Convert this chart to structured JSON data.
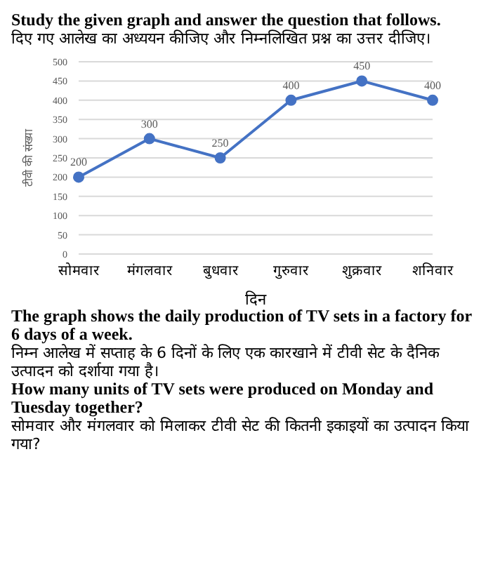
{
  "chart_data": {
    "type": "line",
    "title": "Study the given graph and answer the question that follows.",
    "subtitle": "दिए गए आलेख का अध्ययन कीजिए और निम्नलिखित प्रश्न का उत्तर दीजिए।",
    "xlabel": "दिन",
    "ylabel": "टीवी की संख्या",
    "categories": [
      "सोमवार",
      "मंगलवार",
      "बुधवार",
      "गुरुवार",
      "शुक्रवार",
      "शनिवार"
    ],
    "values": [
      200,
      300,
      250,
      400,
      450,
      400
    ],
    "color": "#4472c4",
    "marker": "circle",
    "data_labels": true,
    "grid": "y",
    "ylim": [
      0,
      500
    ],
    "yticks": [
      0,
      50,
      100,
      150,
      200,
      250,
      300,
      350,
      400,
      450,
      500
    ],
    "annotations": [
      "The graph shows the daily production of TV sets in a factory for 6 days of a week.",
      "निम्न आलेख में सप्ताह के 6 दिनों के लिए एक कारखाने में टीवी सेट के दैनिक उत्पादन को दर्शाया गया है।",
      "How many units of TV sets were produced on Monday and Tuesday together?",
      "सोमवार और मंगलवार को मिलाकर टीवी सेट की कितनी इकाइयों का उत्पादन किया गया?"
    ]
  }
}
